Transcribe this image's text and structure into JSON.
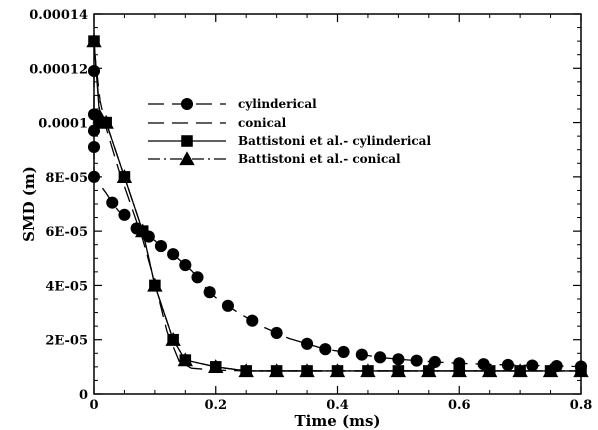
{
  "chart_data": {
    "type": "line",
    "title": "",
    "xlabel": "Time (ms)",
    "ylabel": "SMD (m)",
    "xlim": [
      0,
      0.8
    ],
    "ylim": [
      0,
      0.00014
    ],
    "grid": false,
    "legend_placement": "upper-left",
    "x_ticks": [
      {
        "value": 0,
        "label": "0"
      },
      {
        "value": 0.2,
        "label": "0.2"
      },
      {
        "value": 0.4,
        "label": "0.4"
      },
      {
        "value": 0.6,
        "label": "0.6"
      },
      {
        "value": 0.8,
        "label": "0.8"
      }
    ],
    "y_ticks": [
      {
        "value": 0,
        "label": "0"
      },
      {
        "value": 2e-05,
        "label": "2E-05"
      },
      {
        "value": 4e-05,
        "label": "4E-05"
      },
      {
        "value": 6e-05,
        "label": "6E-05"
      },
      {
        "value": 8e-05,
        "label": "8E-05"
      },
      {
        "value": 0.0001,
        "label": "0.0001"
      },
      {
        "value": 0.00012,
        "label": "0.00012"
      },
      {
        "value": 0.00014,
        "label": "0.00014"
      }
    ],
    "series": [
      {
        "name": "cylinderical",
        "line_style": "dashed",
        "marker": "circle",
        "color": "#000000",
        "x": [
          0.0,
          0.0,
          0.0,
          0.0,
          0.0,
          0.01,
          0.02,
          0.03,
          0.04,
          0.05,
          0.06,
          0.07,
          0.08,
          0.09,
          0.1,
          0.11,
          0.12,
          0.13,
          0.14,
          0.15,
          0.16,
          0.17,
          0.18,
          0.19,
          0.2,
          0.22,
          0.24,
          0.26,
          0.28,
          0.3,
          0.32,
          0.35,
          0.38,
          0.41,
          0.44,
          0.47,
          0.5,
          0.53,
          0.56,
          0.6,
          0.64,
          0.68,
          0.72,
          0.76,
          0.8
        ],
        "y": [
          0.000119,
          0.000103,
          9.7e-05,
          9.1e-05,
          8e-05,
          7.7e-05,
          7.4e-05,
          7.05e-05,
          6.75e-05,
          6.6e-05,
          6.35e-05,
          6.1e-05,
          5.95e-05,
          5.8e-05,
          5.65e-05,
          5.45e-05,
          5.3e-05,
          5.15e-05,
          4.95e-05,
          4.75e-05,
          4.55e-05,
          4.3e-05,
          4e-05,
          3.75e-05,
          3.55e-05,
          3.25e-05,
          2.95e-05,
          2.7e-05,
          2.45e-05,
          2.25e-05,
          2.05e-05,
          1.85e-05,
          1.65e-05,
          1.55e-05,
          1.45e-05,
          1.35e-05,
          1.28e-05,
          1.23e-05,
          1.18e-05,
          1.13e-05,
          1.1e-05,
          1.07e-05,
          1.05e-05,
          1.03e-05,
          1.01e-05
        ],
        "show_markers": [
          true,
          true,
          true,
          true,
          true,
          false,
          false,
          true,
          false,
          true,
          false,
          true,
          false,
          true,
          false,
          true,
          false,
          true,
          false,
          true,
          false,
          true,
          false,
          true,
          false,
          true,
          false,
          true,
          false,
          true,
          false,
          true,
          true,
          true,
          true,
          true,
          true,
          true,
          true,
          true,
          true,
          true,
          true,
          true,
          true
        ]
      },
      {
        "name": "conical",
        "line_style": "dashed",
        "marker": "none",
        "color": "#000000",
        "x": [
          0.0,
          0.01,
          0.02,
          0.04,
          0.06,
          0.08,
          0.1,
          0.12,
          0.14,
          0.16,
          0.2,
          0.25,
          0.3,
          0.4,
          0.5,
          0.6,
          0.7,
          0.8
        ],
        "y": [
          0.000128,
          0.000108,
          9.8e-05,
          8.3e-05,
          7e-05,
          5.7e-05,
          4.1e-05,
          2.3e-05,
          1.2e-05,
          9.5e-06,
          8.8e-06,
          8.5e-06,
          8.5e-06,
          8.5e-06,
          8.5e-06,
          8.5e-06,
          8.5e-06,
          8.5e-06
        ]
      },
      {
        "name": "Battistoni et al.- cylinderical",
        "line_style": "solid",
        "marker": "square",
        "color": "#000000",
        "x": [
          0.0,
          0.01,
          0.02,
          0.05,
          0.08,
          0.1,
          0.13,
          0.15,
          0.2,
          0.25,
          0.3,
          0.35,
          0.4,
          0.45,
          0.5,
          0.55,
          0.6,
          0.65,
          0.7,
          0.75,
          0.8
        ],
        "y": [
          0.00013,
          0.0001,
          0.0001,
          8e-05,
          6e-05,
          4e-05,
          2e-05,
          1.25e-05,
          1e-05,
          8.5e-06,
          8.5e-06,
          8.5e-06,
          8.5e-06,
          8.5e-06,
          8.5e-06,
          8.5e-06,
          8.5e-06,
          8.5e-06,
          8.5e-06,
          8.5e-06,
          8.5e-06
        ]
      },
      {
        "name": "Battistoni et al.- conical",
        "line_style": "dashdot",
        "marker": "triangle",
        "color": "#000000",
        "x": [
          0.0,
          0.01,
          0.02,
          0.05,
          0.08,
          0.1,
          0.13,
          0.15,
          0.2,
          0.25,
          0.3,
          0.35,
          0.4,
          0.45,
          0.5,
          0.55,
          0.6,
          0.65,
          0.7,
          0.75,
          0.8
        ],
        "y": [
          0.00013,
          0.000102,
          0.0001,
          8e-05,
          6e-05,
          4e-05,
          2e-05,
          1.25e-05,
          1e-05,
          8.5e-06,
          8.5e-06,
          8.5e-06,
          8.5e-06,
          8.5e-06,
          8.5e-06,
          8.5e-06,
          8.5e-06,
          8.5e-06,
          8.5e-06,
          8.5e-06,
          8.5e-06
        ]
      }
    ]
  }
}
